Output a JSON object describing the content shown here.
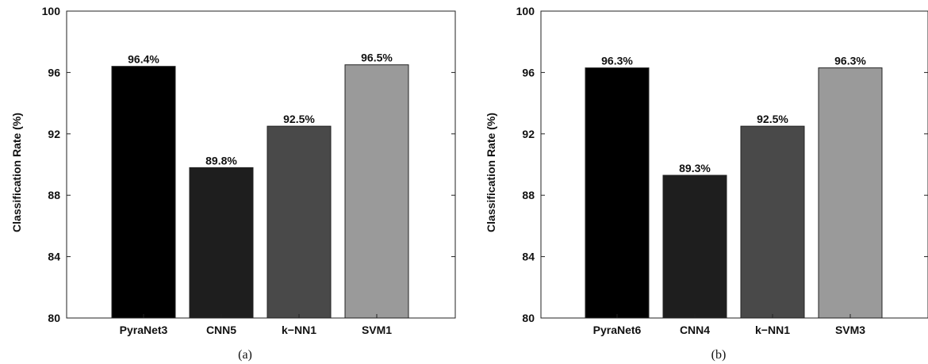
{
  "chart_data": [
    {
      "type": "bar",
      "categories": [
        "PyraNet3",
        "CNN5",
        "k−NN1",
        "SVM1"
      ],
      "values": [
        96.4,
        89.8,
        92.5,
        96.5
      ],
      "data_labels": [
        "96.4%",
        "89.8%",
        "92.5%",
        "96.5%"
      ],
      "colors": [
        "#000000",
        "#1e1e1e",
        "#494949",
        "#9a9a9a"
      ],
      "ylabel": "Classification Rate (%)",
      "ylim": [
        80,
        100
      ],
      "yticks": [
        80,
        84,
        88,
        92,
        96,
        100
      ],
      "caption": "(a)",
      "grid": false
    },
    {
      "type": "bar",
      "categories": [
        "PyraNet6",
        "CNN4",
        "k−NN1",
        "SVM3"
      ],
      "values": [
        96.3,
        89.3,
        92.5,
        96.3
      ],
      "data_labels": [
        "96.3%",
        "89.3%",
        "92.5%",
        "96.3%"
      ],
      "colors": [
        "#000000",
        "#1e1e1e",
        "#494949",
        "#9a9a9a"
      ],
      "ylabel": "Classification Rate (%)",
      "ylim": [
        80,
        100
      ],
      "yticks": [
        80,
        84,
        88,
        92,
        96,
        100
      ],
      "caption": "(b)",
      "grid": false
    }
  ]
}
